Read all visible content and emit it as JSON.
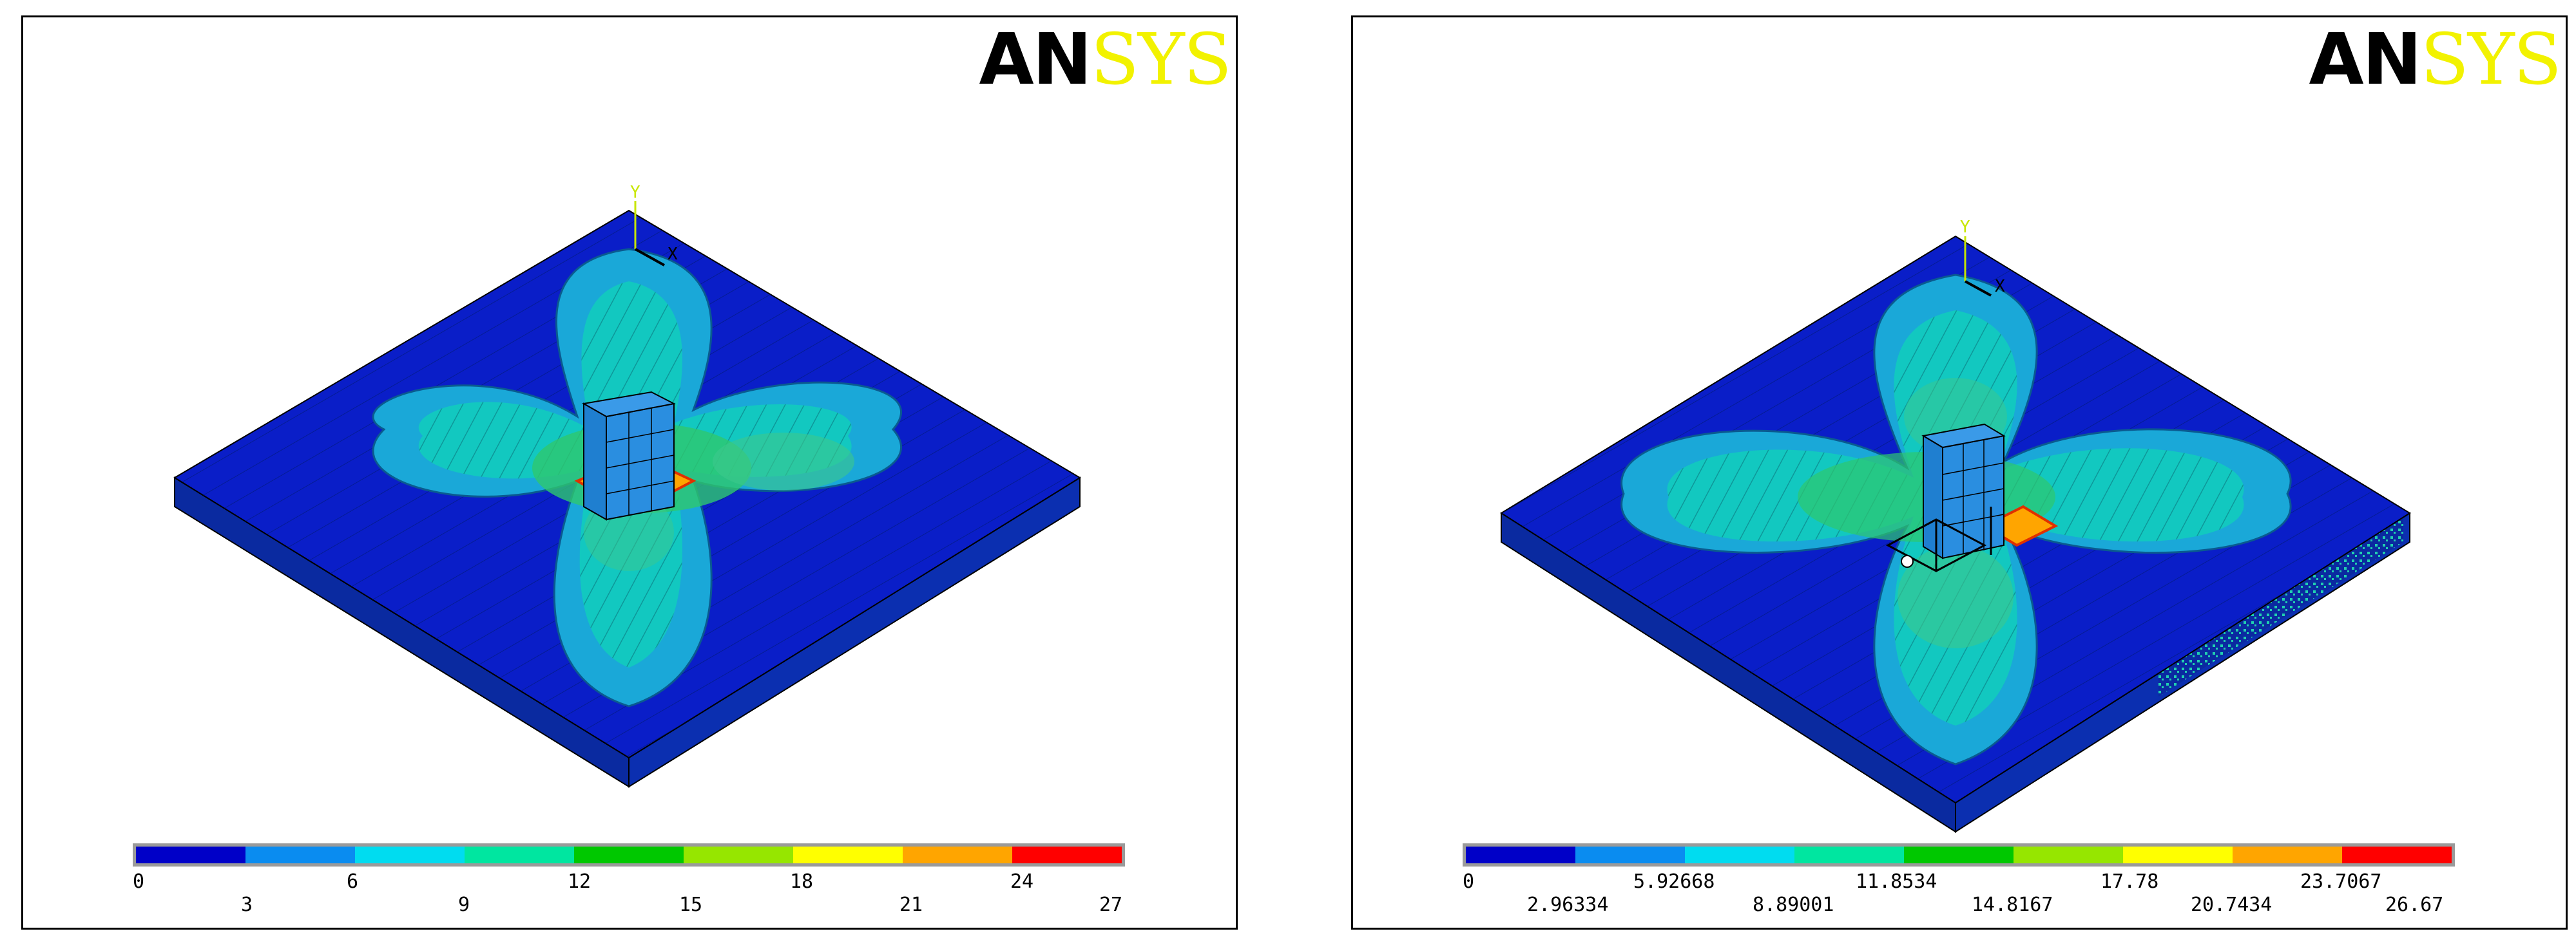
{
  "panels": [
    {
      "logo": {
        "an": "AN",
        "sys": "SYS"
      },
      "axis": {
        "y": "Y",
        "x": "X"
      },
      "legend": {
        "colors": [
          "#0000c8",
          "#0a8cf0",
          "#00dcf0",
          "#00e6a0",
          "#00c800",
          "#96e600",
          "#ffff00",
          "#ffa500",
          "#ff0000"
        ],
        "labels_row1": [
          "0",
          "6",
          "12",
          "18",
          "24"
        ],
        "labels_row2": [
          "3",
          "9",
          "15",
          "21",
          "27"
        ]
      }
    },
    {
      "logo": {
        "an": "AN",
        "sys": "SYS"
      },
      "axis": {
        "y": "Y",
        "x": "X"
      },
      "legend": {
        "colors": [
          "#0000c8",
          "#0a8cf0",
          "#00dcf0",
          "#00e6a0",
          "#00c800",
          "#96e600",
          "#ffff00",
          "#ffa500",
          "#ff0000"
        ],
        "labels_row1": [
          "0",
          "5.92668",
          "11.8534",
          "17.78",
          "23.7067"
        ],
        "labels_row2": [
          "2.96334",
          "8.89001",
          "14.8167",
          "20.7434",
          "26.67"
        ]
      }
    }
  ]
}
